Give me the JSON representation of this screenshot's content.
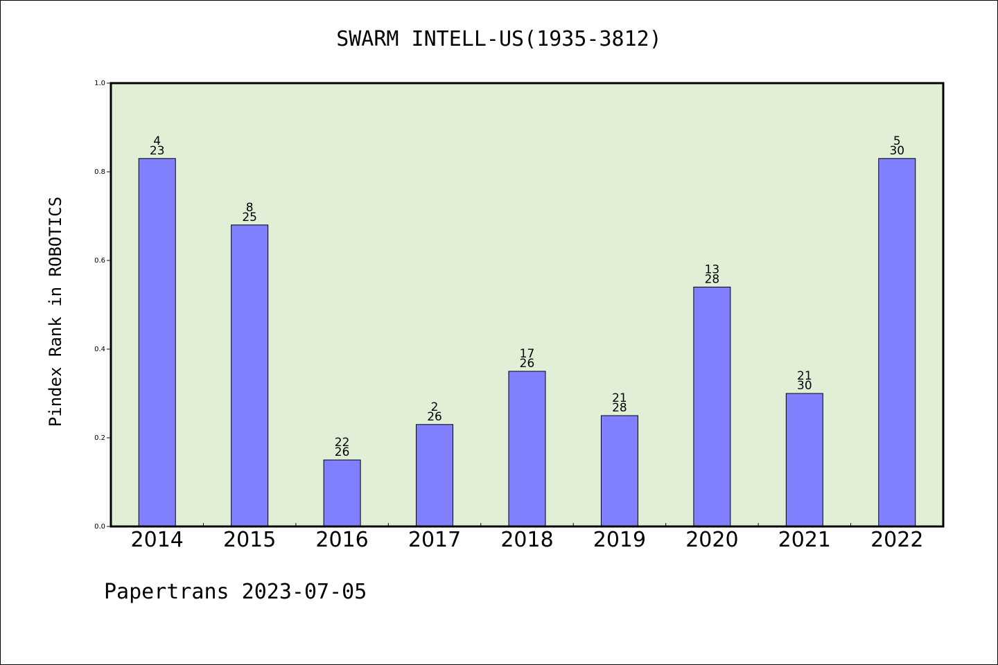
{
  "chart_data": {
    "type": "bar",
    "title": "SWARM INTELL-US(1935-3812)",
    "ylabel": "Pindex Rank in ROBOTICS",
    "xlabel": "",
    "ylim": [
      0,
      1.0
    ],
    "yticks": [
      "0.0",
      "0.2",
      "0.4",
      "0.6",
      "0.8",
      "1.0"
    ],
    "categories": [
      "2014",
      "2015",
      "2016",
      "2017",
      "2018",
      "2019",
      "2020",
      "2021",
      "2022"
    ],
    "values": [
      0.83,
      0.68,
      0.15,
      0.23,
      0.35,
      0.25,
      0.54,
      0.3,
      0.83
    ],
    "labels_top": [
      "4",
      "8",
      "22",
      "2",
      "17",
      "21",
      "13",
      "21",
      "5"
    ],
    "labels_bottom": [
      "23",
      "25",
      "26",
      "26",
      "26",
      "28",
      "28",
      "30",
      "30"
    ],
    "grid": false,
    "colors": {
      "plot_background": "#e2efd7",
      "bar_fill": "#8080ff",
      "bar_edge": "#000000"
    }
  },
  "footer": "Papertrans 2023-07-05"
}
